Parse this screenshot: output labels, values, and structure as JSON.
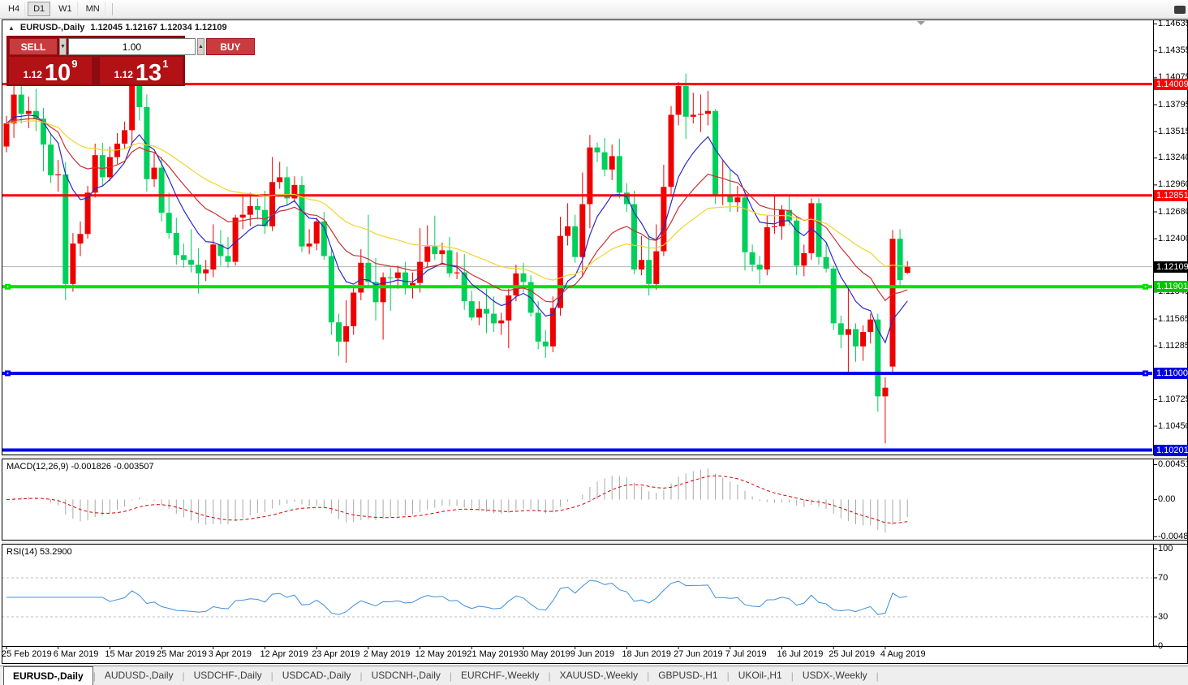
{
  "toolbar": {
    "timeframes": [
      "H4",
      "D1",
      "W1",
      "MN"
    ],
    "active": "D1"
  },
  "chart_header": {
    "collapse_icon": "▲",
    "symbol": "EURUSD-,Daily",
    "ohlc": "1.12045 1.12167 1.12034 1.12109"
  },
  "icons": {
    "spin_down": "▼",
    "spin_up": "▲"
  },
  "trade_panel": {
    "sell_label": "SELL",
    "buy_label": "BUY",
    "volume": "1.00",
    "sell_price": {
      "prefix": "1.12",
      "big": "10",
      "sup": "9"
    },
    "buy_price": {
      "prefix": "1.12",
      "big": "13",
      "sup": "1"
    }
  },
  "price_axis": {
    "ticks": [
      "1.14635",
      "1.14355",
      "1.14075",
      "1.13795",
      "1.13515",
      "1.13240",
      "1.12960",
      "1.12680",
      "1.12400",
      "1.12120",
      "1.11845",
      "1.11565",
      "1.11285",
      "1.11005",
      "1.10725",
      "1.10450",
      "1.10170"
    ],
    "badges": [
      {
        "value": "1.14009",
        "bg": "#fe0000"
      },
      {
        "value": "1.12851",
        "bg": "#fe0000"
      },
      {
        "value": "1.12109",
        "bg": "#000000"
      },
      {
        "value": "1.11901",
        "bg": "#00c400"
      },
      {
        "value": "1.11000",
        "bg": "#0000e0"
      },
      {
        "value": "1.10201",
        "bg": "#0000e0"
      }
    ]
  },
  "indicators": {
    "macd_label": "MACD(12,26,9) -0.001826 -0.003507",
    "macd_ticks": [
      "0.004517",
      "0.00",
      "-0.004806"
    ],
    "rsi_label": "RSI(14) 53.2900",
    "rsi_ticks": [
      "100",
      "70",
      "30",
      "0"
    ]
  },
  "x_axis": {
    "label_every": 7,
    "labels": [
      "25 Feb 2019",
      "6 Mar 2019",
      "15 Mar 2019",
      "25 Mar 2019",
      "3 Apr 2019",
      "12 Apr 2019",
      "23 Apr 2019",
      "2 May 2019",
      "12 May 2019",
      "21 May 2019",
      "30 May 2019",
      "9 Jun 2019",
      "18 Jun 2019",
      "27 Jun 2019",
      "7 Jul 2019",
      "16 Jul 2019",
      "25 Jul 2019",
      "4 Aug 2019"
    ]
  },
  "tabs": {
    "active_index": 0,
    "items": [
      "EURUSD-,Daily",
      "AUDUSD-,Daily",
      "USDCHF-,Daily",
      "USDCAD-,Daily",
      "USDCNH-,Daily",
      "EURCHF-,Weekly",
      "XAUUSD-,Weekly",
      "GBPUSD-,H1",
      "UKOil-,H1",
      "USDX-,Weekly"
    ]
  },
  "chart_data": {
    "type": "candlestick",
    "symbol": "EURUSD-",
    "timeframe": "Daily",
    "ylim": [
      1.10155,
      1.14665
    ],
    "current_price": 1.12109,
    "colors": {
      "up": "#ef0000",
      "down": "#00cf5c"
    },
    "hlines": [
      {
        "price": 1.14009,
        "color": "#fe0000",
        "width": 3,
        "handles": false
      },
      {
        "price": 1.12851,
        "color": "#fe0000",
        "width": 3,
        "handles": false
      },
      {
        "price": 1.11901,
        "color": "#00e100",
        "width": 4,
        "handles": true
      },
      {
        "price": 1.11,
        "color": "#0000f0",
        "width": 4,
        "handles": true
      },
      {
        "price": 1.10201,
        "color": "#0000f0",
        "width": 4,
        "handles": false
      }
    ],
    "moving_averages": [
      {
        "period": 8,
        "color": "#2828c8"
      },
      {
        "period": 18,
        "color": "#c83232"
      },
      {
        "period": 38,
        "color": "#efd52a"
      }
    ],
    "macd": {
      "fast": 12,
      "slow": 26,
      "signal": 9,
      "current_macd": -0.001826,
      "current_signal": -0.003507,
      "ymax": 0.004517,
      "ymin": -0.004806
    },
    "rsi": {
      "period": 14,
      "current": 53.29,
      "levels": [
        70,
        30
      ]
    },
    "candles": [
      [
        1.1336,
        1.1368,
        1.133,
        1.136
      ],
      [
        1.136,
        1.1403,
        1.1345,
        1.139
      ],
      [
        1.139,
        1.1404,
        1.136,
        1.137
      ],
      [
        1.137,
        1.1388,
        1.1355,
        1.1373
      ],
      [
        1.1373,
        1.1396,
        1.1352,
        1.1365
      ],
      [
        1.1365,
        1.1376,
        1.131,
        1.1338
      ],
      [
        1.1338,
        1.135,
        1.1298,
        1.1306
      ],
      [
        1.1306,
        1.1322,
        1.1289,
        1.1307
      ],
      [
        1.1307,
        1.132,
        1.1176,
        1.1193
      ],
      [
        1.1193,
        1.1246,
        1.1185,
        1.1235
      ],
      [
        1.1235,
        1.1258,
        1.1222,
        1.1245
      ],
      [
        1.1245,
        1.1295,
        1.124,
        1.1288
      ],
      [
        1.1288,
        1.1339,
        1.1283,
        1.1327
      ],
      [
        1.1327,
        1.134,
        1.1295,
        1.1304
      ],
      [
        1.1304,
        1.1336,
        1.13,
        1.1325
      ],
      [
        1.1325,
        1.135,
        1.1318,
        1.1339
      ],
      [
        1.1339,
        1.1362,
        1.1333,
        1.1353
      ],
      [
        1.1353,
        1.1438,
        1.1336,
        1.1412
      ],
      [
        1.1412,
        1.1418,
        1.1363,
        1.1377
      ],
      [
        1.1377,
        1.139,
        1.1289,
        1.1302
      ],
      [
        1.1302,
        1.133,
        1.1294,
        1.1314
      ],
      [
        1.1314,
        1.1325,
        1.1258,
        1.1267
      ],
      [
        1.1267,
        1.1288,
        1.124,
        1.1246
      ],
      [
        1.1246,
        1.1262,
        1.1213,
        1.1223
      ],
      [
        1.1223,
        1.1235,
        1.121,
        1.1218
      ],
      [
        1.1218,
        1.125,
        1.1205,
        1.1213
      ],
      [
        1.1213,
        1.123,
        1.1183,
        1.1204
      ],
      [
        1.1204,
        1.1218,
        1.1196,
        1.1208
      ],
      [
        1.1208,
        1.1255,
        1.12,
        1.1234
      ],
      [
        1.1234,
        1.1249,
        1.1212,
        1.1222
      ],
      [
        1.1222,
        1.1242,
        1.121,
        1.1216
      ],
      [
        1.1216,
        1.1265,
        1.1212,
        1.1262
      ],
      [
        1.1262,
        1.1285,
        1.125,
        1.1265
      ],
      [
        1.1265,
        1.1288,
        1.1253,
        1.1274
      ],
      [
        1.1274,
        1.1282,
        1.126,
        1.127
      ],
      [
        1.127,
        1.129,
        1.1245,
        1.1253
      ],
      [
        1.1253,
        1.1325,
        1.1248,
        1.1299
      ],
      [
        1.1299,
        1.132,
        1.1292,
        1.1304
      ],
      [
        1.1304,
        1.1315,
        1.1275,
        1.1282
      ],
      [
        1.1282,
        1.1305,
        1.1278,
        1.1296
      ],
      [
        1.1296,
        1.1305,
        1.1226,
        1.1232
      ],
      [
        1.1232,
        1.125,
        1.1224,
        1.1235
      ],
      [
        1.1235,
        1.1262,
        1.1228,
        1.1258
      ],
      [
        1.1258,
        1.1268,
        1.1218,
        1.1222
      ],
      [
        1.1222,
        1.123,
        1.114,
        1.1153
      ],
      [
        1.1153,
        1.1162,
        1.1118,
        1.1133
      ],
      [
        1.1133,
        1.1176,
        1.1111,
        1.1149
      ],
      [
        1.1149,
        1.119,
        1.114,
        1.1184
      ],
      [
        1.1184,
        1.1229,
        1.1176,
        1.1215
      ],
      [
        1.1215,
        1.1265,
        1.119,
        1.1195
      ],
      [
        1.1195,
        1.122,
        1.1155,
        1.1174
      ],
      [
        1.1174,
        1.1205,
        1.1135,
        1.12
      ],
      [
        1.12,
        1.121,
        1.1165,
        1.1199
      ],
      [
        1.1199,
        1.1212,
        1.1188,
        1.1205
      ],
      [
        1.1205,
        1.1216,
        1.1182,
        1.119
      ],
      [
        1.119,
        1.1205,
        1.1178,
        1.1194
      ],
      [
        1.1194,
        1.1251,
        1.1184,
        1.1216
      ],
      [
        1.1216,
        1.1254,
        1.121,
        1.1232
      ],
      [
        1.1232,
        1.1264,
        1.1218,
        1.1224
      ],
      [
        1.1224,
        1.1236,
        1.1214,
        1.1228
      ],
      [
        1.1228,
        1.1242,
        1.12,
        1.1204
      ],
      [
        1.1204,
        1.1226,
        1.1198,
        1.1205
      ],
      [
        1.1205,
        1.1224,
        1.1166,
        1.1175
      ],
      [
        1.1175,
        1.1186,
        1.1155,
        1.1158
      ],
      [
        1.1158,
        1.1175,
        1.115,
        1.1167
      ],
      [
        1.1167,
        1.1188,
        1.1142,
        1.1162
      ],
      [
        1.1162,
        1.118,
        1.1143,
        1.1152
      ],
      [
        1.1152,
        1.1163,
        1.114,
        1.1155
      ],
      [
        1.1155,
        1.1188,
        1.1126,
        1.1181
      ],
      [
        1.1181,
        1.1213,
        1.1175,
        1.1204
      ],
      [
        1.1204,
        1.1215,
        1.1184,
        1.1195
      ],
      [
        1.1195,
        1.1202,
        1.1159,
        1.1163
      ],
      [
        1.1163,
        1.1175,
        1.1125,
        1.1133
      ],
      [
        1.1133,
        1.1145,
        1.1116,
        1.1128
      ],
      [
        1.1128,
        1.118,
        1.1122,
        1.1168
      ],
      [
        1.1168,
        1.1263,
        1.116,
        1.1243
      ],
      [
        1.1243,
        1.1277,
        1.1233,
        1.1253
      ],
      [
        1.1253,
        1.1265,
        1.1215,
        1.1221
      ],
      [
        1.1221,
        1.1309,
        1.12,
        1.1276
      ],
      [
        1.1276,
        1.1348,
        1.1251,
        1.1335
      ],
      [
        1.1335,
        1.134,
        1.132,
        1.133
      ],
      [
        1.133,
        1.1345,
        1.1305,
        1.1312
      ],
      [
        1.1312,
        1.1338,
        1.1301,
        1.1326
      ],
      [
        1.1326,
        1.1344,
        1.1282,
        1.1288
      ],
      [
        1.1288,
        1.1298,
        1.1268,
        1.1276
      ],
      [
        1.1276,
        1.129,
        1.1203,
        1.1208
      ],
      [
        1.1208,
        1.1243,
        1.1202,
        1.1218
      ],
      [
        1.1218,
        1.1244,
        1.1181,
        1.1193
      ],
      [
        1.1193,
        1.1255,
        1.1187,
        1.1227
      ],
      [
        1.1227,
        1.1317,
        1.1222,
        1.1294
      ],
      [
        1.1294,
        1.1378,
        1.1285,
        1.1369
      ],
      [
        1.1369,
        1.1403,
        1.1358,
        1.1399
      ],
      [
        1.1399,
        1.1412,
        1.1344,
        1.1367
      ],
      [
        1.1367,
        1.1392,
        1.136,
        1.1369
      ],
      [
        1.1369,
        1.139,
        1.1351,
        1.137
      ],
      [
        1.137,
        1.1394,
        1.1358,
        1.1373
      ],
      [
        1.1373,
        1.1375,
        1.1276,
        1.1285
      ],
      [
        1.1285,
        1.1322,
        1.1275,
        1.1285
      ],
      [
        1.1285,
        1.1312,
        1.1268,
        1.1278
      ],
      [
        1.1278,
        1.1295,
        1.1268,
        1.1283
      ],
      [
        1.1283,
        1.1289,
        1.1207,
        1.1226
      ],
      [
        1.1226,
        1.1234,
        1.1206,
        1.1213
      ],
      [
        1.1213,
        1.1222,
        1.1193,
        1.1208
      ],
      [
        1.1208,
        1.1264,
        1.1202,
        1.1252
      ],
      [
        1.1252,
        1.1286,
        1.1245,
        1.1253
      ],
      [
        1.1253,
        1.1275,
        1.1239,
        1.127
      ],
      [
        1.127,
        1.1285,
        1.1254,
        1.1259
      ],
      [
        1.1259,
        1.1263,
        1.1202,
        1.1212
      ],
      [
        1.1212,
        1.1234,
        1.1201,
        1.1225
      ],
      [
        1.1225,
        1.1282,
        1.1218,
        1.1277
      ],
      [
        1.1277,
        1.1282,
        1.1213,
        1.1221
      ],
      [
        1.1221,
        1.1235,
        1.1205,
        1.1209
      ],
      [
        1.1209,
        1.1212,
        1.1145,
        1.1152
      ],
      [
        1.1152,
        1.116,
        1.1126,
        1.114
      ],
      [
        1.114,
        1.1188,
        1.1101,
        1.1146
      ],
      [
        1.1146,
        1.1152,
        1.1112,
        1.1128
      ],
      [
        1.1128,
        1.115,
        1.1113,
        1.1143
      ],
      [
        1.1143,
        1.1162,
        1.1131,
        1.1156
      ],
      [
        1.1156,
        1.1162,
        1.106,
        1.1076
      ],
      [
        1.1076,
        1.1096,
        1.1027,
        1.1085
      ],
      [
        1.1107,
        1.1249,
        1.1101,
        1.124
      ],
      [
        1.124,
        1.125,
        1.119,
        1.1197
      ],
      [
        1.12045,
        1.12167,
        1.12034,
        1.12109
      ]
    ]
  }
}
